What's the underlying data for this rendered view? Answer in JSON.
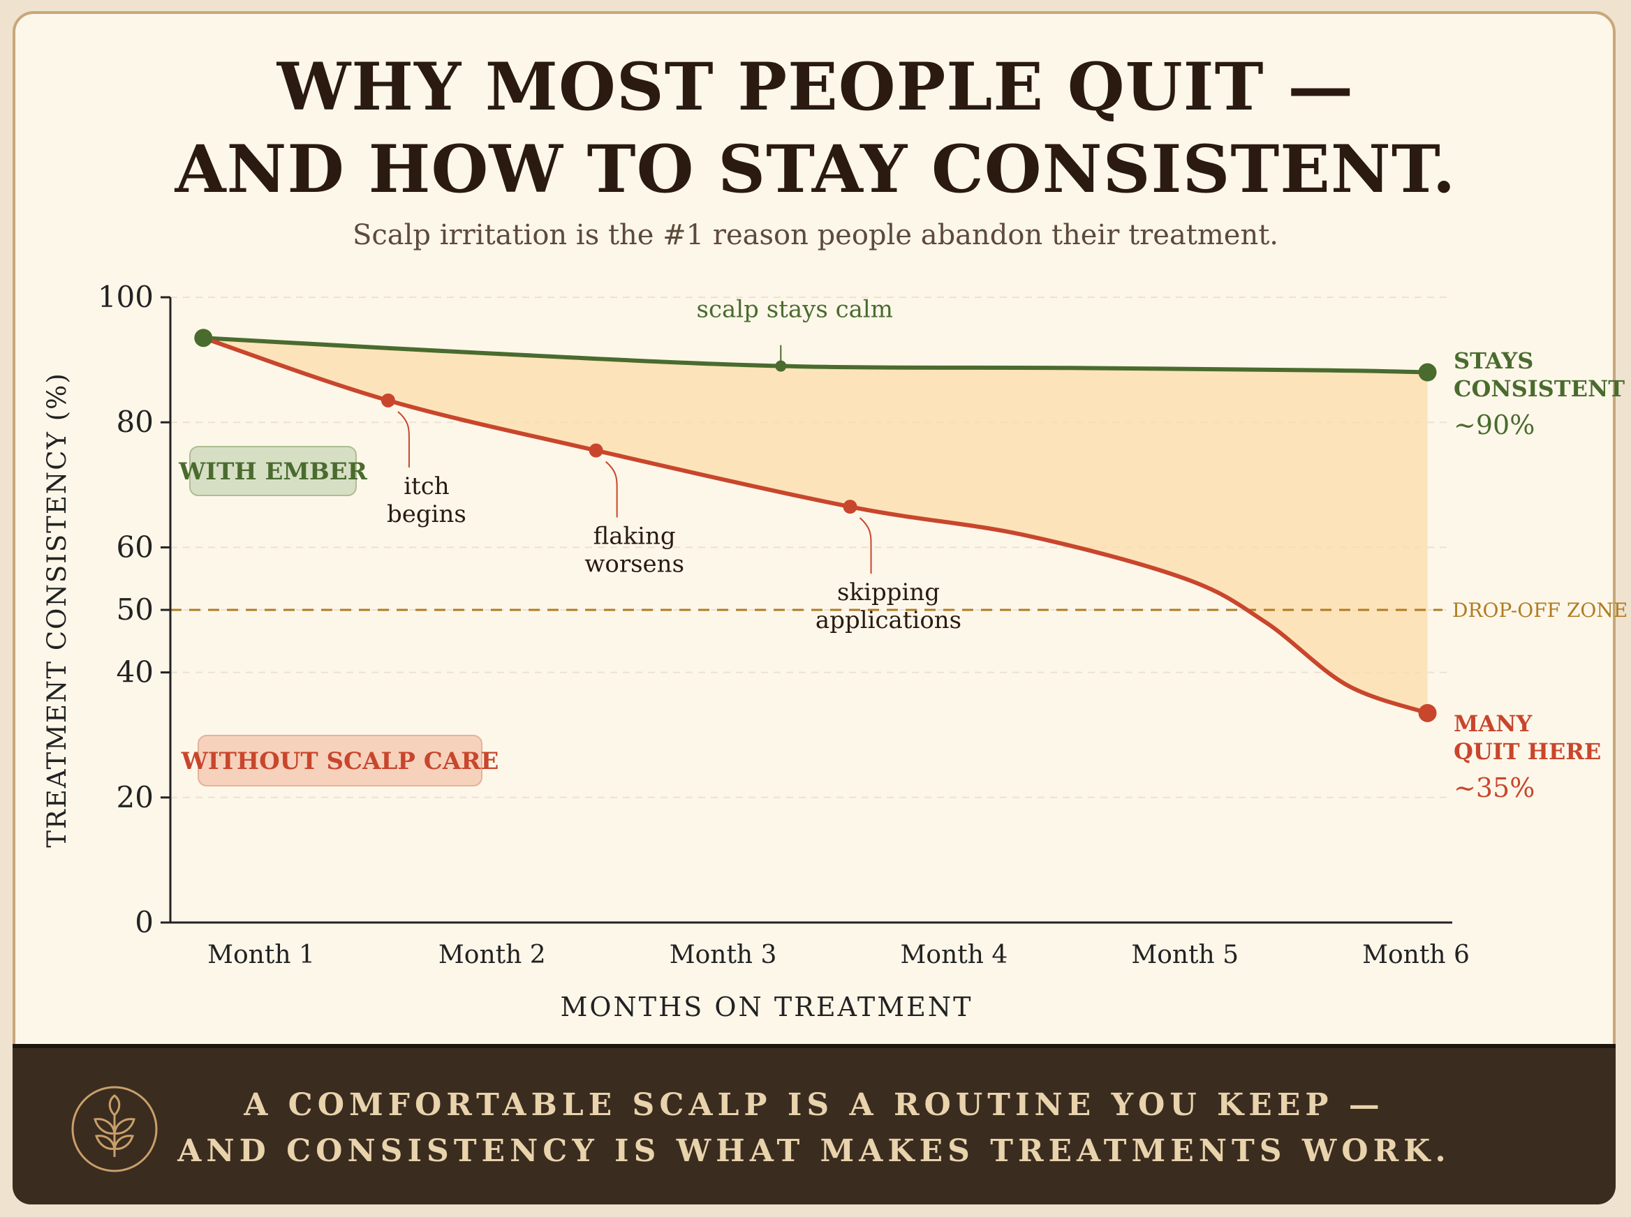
{
  "header": {
    "title_line1": "WHY MOST PEOPLE QUIT —",
    "title_line2": "AND HOW TO STAY CONSISTENT.",
    "subtitle": "Scalp irritation is the #1 reason people abandon their treatment."
  },
  "footer": {
    "line1": "A COMFORTABLE SCALP IS A ROUTINE YOU KEEP —",
    "line2": "AND CONSISTENCY IS WHAT MAKES TREATMENTS WORK.",
    "icon": "leaf-sprout-icon"
  },
  "colors": {
    "green": "#4a6b2e",
    "red": "#c8462c",
    "gap_fill": "#fbdcaa",
    "threshold": "#b07c22",
    "axis": "#222222",
    "gridline": "#ece2d2"
  },
  "chart_data": {
    "type": "line",
    "xlabel": "MONTHS ON TREATMENT",
    "ylabel": "TREATMENT CONSISTENCY (%)",
    "categories": [
      "Month 1",
      "Month 2",
      "Month 3",
      "Month 4",
      "Month 5",
      "Month 6"
    ],
    "ylim": [
      0,
      100
    ],
    "yticks": [
      0,
      20,
      40,
      50,
      60,
      80,
      100
    ],
    "xlim": [
      0.6,
      6.05
    ],
    "grid": true,
    "series": [
      {
        "name": "WITH EMBER",
        "color": "#4a6b2e",
        "x": [
          0.75,
          2.0,
          3.25,
          4.5,
          5.65,
          6.05
        ],
        "y": [
          93.5,
          91,
          89,
          88.7,
          88.3,
          88
        ],
        "marked_points": [
          0,
          2,
          5
        ],
        "end_label": [
          "STAYS",
          "CONSISTENT"
        ],
        "end_value": "~90%"
      },
      {
        "name": "WITHOUT SCALP CARE",
        "color": "#c8462c",
        "x": [
          0.75,
          1.55,
          2.45,
          3.55,
          4.3,
          5.0,
          5.35,
          5.7,
          6.05
        ],
        "y": [
          93.5,
          83.5,
          75.5,
          66.5,
          62,
          55,
          48,
          38,
          33.5
        ],
        "marked_points": [
          0,
          1,
          2,
          3,
          8
        ],
        "end_label": [
          "MANY",
          "QUIT HERE"
        ],
        "end_value": "~35%"
      }
    ],
    "threshold": {
      "y": 50,
      "label": "DROP-OFF ZONE"
    },
    "annotations": [
      {
        "series": 1,
        "point": 1,
        "lines": [
          "itch",
          "begins"
        ]
      },
      {
        "series": 1,
        "point": 2,
        "lines": [
          "flaking",
          "worsens"
        ]
      },
      {
        "series": 1,
        "point": 3,
        "lines": [
          "skipping",
          "applications"
        ]
      },
      {
        "series": 0,
        "point": 2,
        "lines": [
          "scalp stays calm"
        ]
      }
    ],
    "legend": [
      {
        "label": "WITH EMBER",
        "series": 0,
        "placement": "left-upper"
      },
      {
        "label": "WITHOUT SCALP CARE",
        "series": 1,
        "placement": "left-lower"
      }
    ]
  }
}
